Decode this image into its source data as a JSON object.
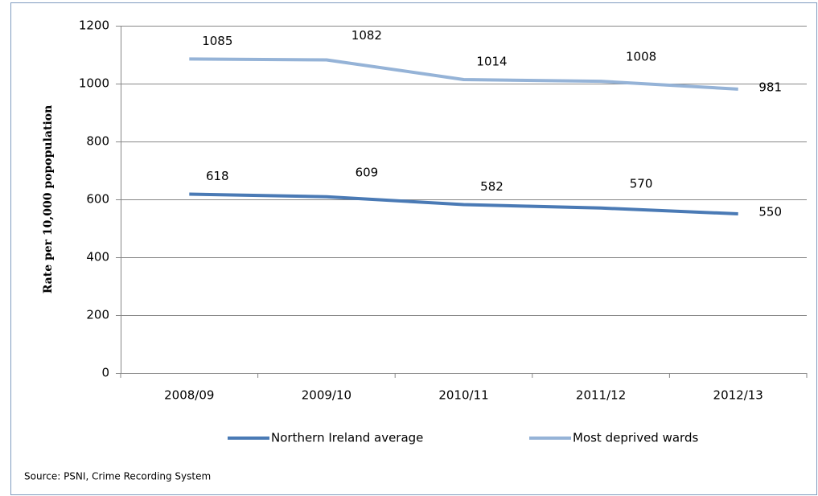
{
  "chart_data": {
    "type": "line",
    "categories": [
      "2008/09",
      "2009/10",
      "2010/11",
      "2011/12",
      "2012/13"
    ],
    "series": [
      {
        "name": "Northern Ireland average",
        "color": "#4a7ab5",
        "values": [
          618,
          609,
          582,
          570,
          550
        ]
      },
      {
        "name": "Most deprived wards",
        "color": "#95b3d7",
        "values": [
          1085,
          1082,
          1014,
          1008,
          981
        ]
      }
    ],
    "y_label": "Rate per 10,000 popopulation",
    "ylim": [
      0,
      1200
    ],
    "yticks": [
      0,
      200,
      400,
      600,
      800,
      1000,
      1200
    ],
    "grid": true,
    "legend": "bottom",
    "source": "Source: PSNI, Crime Recording System"
  }
}
